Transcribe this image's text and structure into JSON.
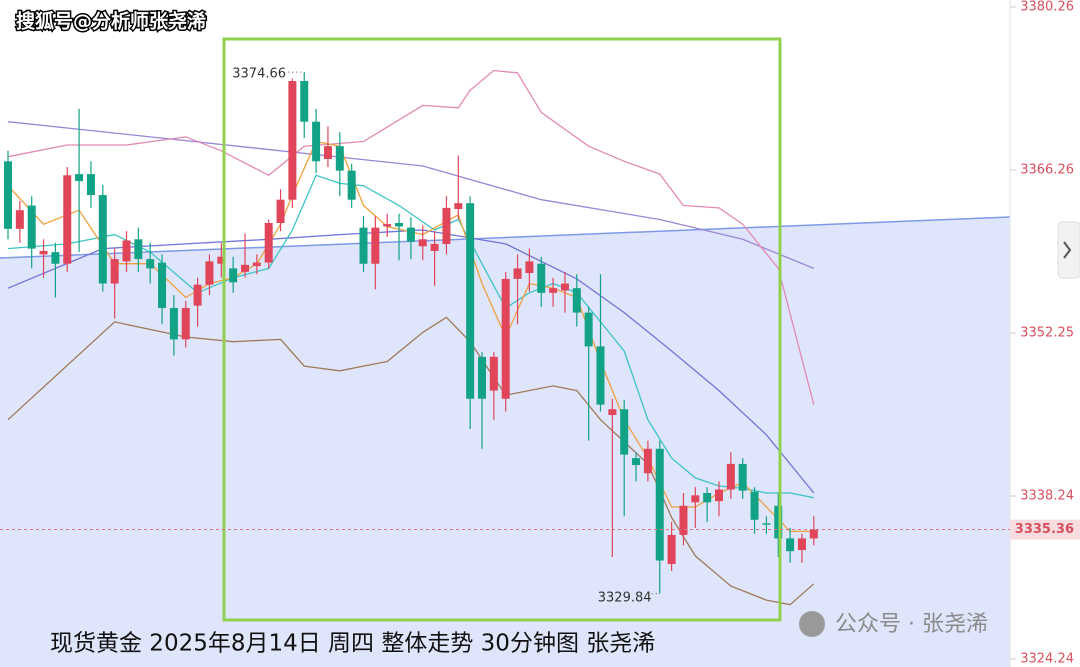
{
  "chart_data": {
    "type": "candlestick",
    "watermark": "搜狐号@分析师张尧浠",
    "caption": "现货黄金 2025年8月14日 周四 整体走势 30分钟图 张尧浠",
    "source": "公众号 · 张尧浠",
    "up_color": "#e0455a",
    "down_color": "#12a386",
    "open": [
      3367.0,
      3361.2,
      3363.2,
      3359.0,
      3359.2,
      3358.2,
      3365.9,
      3365.9,
      3364.1,
      3356.5,
      3358.4,
      3360.3,
      3358.6,
      3358.3,
      3354.4,
      3351.7,
      3354.6,
      3356.4,
      3358.2,
      3357.8,
      3357.5,
      3358.0,
      3358.3,
      3361.7,
      3363.7,
      3373.9,
      3370.4,
      3367.2,
      3368.3,
      3366.2,
      3361.3,
      3358.2,
      3361.4,
      3361.7,
      3361.3,
      3359.7,
      3359.3,
      3359.9,
      3362.9,
      3363.4,
      3350.2,
      3347.3,
      3346.6,
      3356.9,
      3357.4,
      3358.2,
      3355.7,
      3355.9,
      3356.1,
      3354.0,
      3351.1,
      3345.2,
      3345.7,
      3341.5,
      3340.2,
      3342.3,
      3332.4,
      3334.9,
      3337.7,
      3338.5,
      3337.8,
      3338.8,
      3341.0,
      3338.6,
      3335.9,
      3337.4,
      3334.6,
      3333.6,
      3334.6
    ],
    "high": [
      3367.9,
      3363.6,
      3364.0,
      3360.3,
      3360.0,
      3366.5,
      3371.5,
      3367.0,
      3365.0,
      3359.5,
      3361.0,
      3361.3,
      3360.0,
      3359.0,
      3355.5,
      3355.0,
      3357.0,
      3359.0,
      3360.0,
      3358.8,
      3360.8,
      3359.0,
      3362.0,
      3364.6,
      3374.1,
      3374.66,
      3371.5,
      3370.0,
      3369.5,
      3366.8,
      3362.3,
      3362.3,
      3362.5,
      3362.5,
      3362.2,
      3361.5,
      3361.0,
      3364.0,
      3367.5,
      3364.0,
      3350.6,
      3350.6,
      3357.5,
      3359.0,
      3359.5,
      3358.8,
      3357.0,
      3357.5,
      3357.3,
      3354.5,
      3357.3,
      3346.6,
      3346.5,
      3342.0,
      3343.0,
      3343.0,
      3336.0,
      3338.5,
      3339.0,
      3339.0,
      3339.5,
      3342.0,
      3341.5,
      3339.0,
      3336.5,
      3338.5,
      3335.5,
      3335.0,
      3336.5
    ],
    "low": [
      3360.3,
      3360.0,
      3357.8,
      3357.0,
      3355.3,
      3357.5,
      3359.2,
      3363.0,
      3355.8,
      3353.5,
      3357.5,
      3357.5,
      3356.5,
      3353.0,
      3350.3,
      3351.0,
      3352.8,
      3355.5,
      3357.0,
      3355.7,
      3357.0,
      3357.3,
      3357.8,
      3361.0,
      3363.0,
      3369.0,
      3366.0,
      3366.5,
      3364.0,
      3363.0,
      3357.5,
      3356.0,
      3360.5,
      3358.5,
      3358.6,
      3358.5,
      3356.3,
      3359.0,
      3362.0,
      3344.0,
      3342.3,
      3344.8,
      3345.5,
      3353.0,
      3355.8,
      3354.5,
      3354.5,
      3354.0,
      3352.8,
      3343.0,
      3345.5,
      3333.0,
      3336.5,
      3339.5,
      3339.5,
      3329.84,
      3331.8,
      3334.0,
      3335.5,
      3336.0,
      3336.5,
      3338.0,
      3338.0,
      3335.0,
      3335.0,
      3333.0,
      3332.5,
      3332.5,
      3334.0
    ],
    "close": [
      3361.2,
      3362.8,
      3359.5,
      3359.3,
      3358.2,
      3365.8,
      3365.3,
      3364.1,
      3356.5,
      3358.6,
      3360.2,
      3358.6,
      3357.8,
      3354.4,
      3351.7,
      3354.4,
      3356.4,
      3358.4,
      3358.8,
      3356.6,
      3358.1,
      3358.3,
      3361.7,
      3363.7,
      3373.9,
      3370.4,
      3367.0,
      3368.3,
      3366.2,
      3363.7,
      3358.2,
      3361.3,
      3361.6,
      3361.4,
      3360.1,
      3360.3,
      3359.9,
      3363.0,
      3363.4,
      3346.6,
      3346.6,
      3350.2,
      3356.9,
      3357.8,
      3358.4,
      3355.7,
      3356.1,
      3356.5,
      3354.0,
      3351.1,
      3346.1,
      3345.7,
      3341.8,
      3340.9,
      3342.3,
      3332.7,
      3334.9,
      3337.4,
      3338.3,
      3337.7,
      3338.8,
      3341.0,
      3338.7,
      3336.2,
      3335.8,
      3334.6,
      3333.5,
      3334.6,
      3335.36
    ],
    "lines": [
      {
        "color": "#9a86d6",
        "x": [
          0,
          23,
          35,
          45,
          55,
          62,
          68
        ],
        "values": [
          3370.4,
          3367.9,
          3366.6,
          3363.7,
          3362.0,
          3360.3,
          3357.8
        ]
      },
      {
        "color": "#6f74d8",
        "x": [
          0,
          8,
          15,
          22,
          28,
          35,
          42,
          48,
          52,
          56,
          60,
          64,
          68
        ],
        "values": [
          3356.1,
          3359.5,
          3359.9,
          3360.3,
          3360.7,
          3361.1,
          3359.9,
          3356.9,
          3354.0,
          3350.7,
          3347.3,
          3343.5,
          3338.5
        ]
      },
      {
        "color": "#e28ab4",
        "x": [
          0,
          5,
          10,
          15,
          18,
          22,
          25,
          30,
          35,
          38,
          39,
          41,
          43,
          45,
          49,
          52,
          55,
          57,
          60,
          62,
          65,
          68
        ],
        "values": [
          3367.4,
          3368.4,
          3368.4,
          3369.1,
          3367.9,
          3365.8,
          3368.3,
          3368.7,
          3371.8,
          3371.6,
          3373.1,
          3374.8,
          3374.6,
          3371.2,
          3368.3,
          3367.0,
          3365.9,
          3363.2,
          3363.0,
          3361.6,
          3357.8,
          3346.1
        ]
      },
      {
        "color": "#a07a58",
        "x": [
          0,
          9,
          15,
          19,
          23,
          25,
          28,
          32,
          35,
          37,
          39,
          42,
          46,
          48,
          50,
          54,
          56,
          58,
          61,
          64,
          66,
          68
        ],
        "values": [
          3344.8,
          3353.2,
          3351.9,
          3351.5,
          3351.7,
          3349.4,
          3349.0,
          3349.8,
          3352.3,
          3353.6,
          3351.5,
          3346.9,
          3347.7,
          3347.3,
          3344.8,
          3341.0,
          3336.4,
          3333.1,
          3330.5,
          3329.3,
          3328.9,
          3330.7
        ]
      },
      {
        "color": "#3cc4c8",
        "x": [
          0,
          5,
          9,
          12,
          16,
          19,
          22,
          24,
          26,
          28,
          30,
          33,
          36,
          38,
          40,
          42,
          44,
          46,
          48,
          50,
          52,
          54,
          56,
          58,
          60,
          62,
          64,
          66,
          68
        ],
        "values": [
          3359.5,
          3359.9,
          3360.7,
          3359.2,
          3355.7,
          3357.0,
          3357.8,
          3361.1,
          3365.8,
          3365.1,
          3364.9,
          3363.2,
          3361.1,
          3362.0,
          3358.2,
          3354.4,
          3355.7,
          3356.5,
          3355.7,
          3353.2,
          3350.7,
          3344.8,
          3341.5,
          3339.8,
          3339.1,
          3338.9,
          3338.5,
          3338.5,
          3338.1
        ]
      },
      {
        "color": "#f0a040",
        "x": [
          0,
          3,
          6,
          9,
          12,
          15,
          17,
          19,
          21,
          23,
          24,
          26,
          28,
          30,
          32,
          35,
          38,
          40,
          42,
          44,
          46,
          48,
          50,
          52,
          54,
          56,
          58,
          60,
          62,
          64,
          66,
          68
        ],
        "values": [
          3364.9,
          3361.6,
          3362.8,
          3358.2,
          3358.2,
          3355.3,
          3356.5,
          3357.0,
          3358.2,
          3361.6,
          3364.1,
          3368.7,
          3368.3,
          3363.2,
          3361.4,
          3360.7,
          3362.4,
          3356.5,
          3351.9,
          3356.5,
          3356.1,
          3355.3,
          3349.8,
          3344.8,
          3341.5,
          3337.3,
          3337.3,
          3338.5,
          3339.4,
          3337.3,
          3335.2,
          3335.2
        ]
      }
    ],
    "high_label": 3374.66,
    "low_label": 3329.84,
    "last_price": 3335.36,
    "ylim": [
      3323.55,
      3380.86
    ],
    "yticks": [
      3380.26,
      3366.26,
      3352.25,
      3338.24,
      3324.24
    ]
  }
}
